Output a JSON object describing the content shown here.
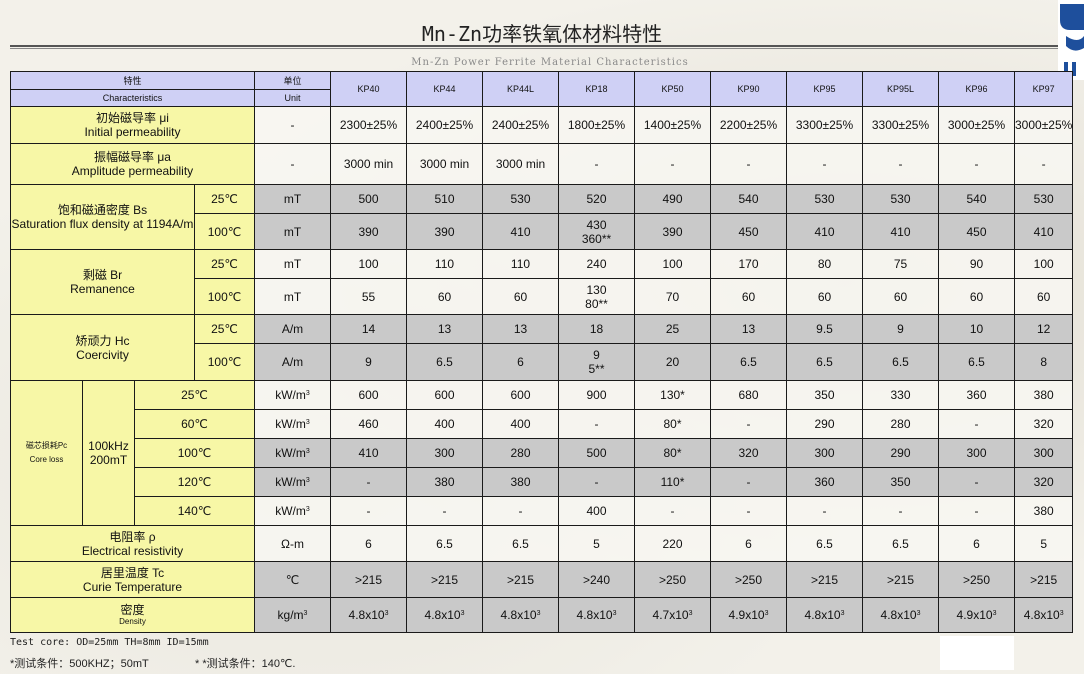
{
  "title": "Mn-Zn功率铁氧体材料特性",
  "subtitle": "Mn-Zn Power Ferrite Material Characteristics",
  "header": {
    "char_cn": "特性",
    "char_en": "Characteristics",
    "unit_cn": "单位",
    "unit_en": "Unit",
    "materials": [
      "KP40",
      "KP44",
      "KP44L",
      "KP18",
      "KP50",
      "KP90",
      "KP95",
      "KP95L",
      "KP96",
      "KP97"
    ]
  },
  "rows": {
    "initial_perm": {
      "cn": "初始磁导率 μi",
      "en": "Initial permeability",
      "unit": "-",
      "values": [
        "2300±25%",
        "2400±25%",
        "2400±25%",
        "1800±25%",
        "1400±25%",
        "2200±25%",
        "3300±25%",
        "3300±25%",
        "3000±25%",
        "3000±25%"
      ]
    },
    "amplitude_perm": {
      "cn": "振幅磁导率 μa",
      "en": "Amplitude permeability",
      "unit": "-",
      "values": [
        "3000 min",
        "3000 min",
        "3000 min",
        "-",
        "-",
        "-",
        "-",
        "-",
        "-",
        "-"
      ]
    },
    "bs": {
      "cn": "饱和磁通密度 Bs",
      "en": "Saturation flux density at 1194A/m",
      "t25": "25℃",
      "t100": "100℃",
      "unit": "mT",
      "v25": [
        "500",
        "510",
        "530",
        "520",
        "490",
        "540",
        "530",
        "530",
        "540",
        "530"
      ],
      "v100": [
        "390",
        "390",
        "410",
        "430",
        "390",
        "450",
        "410",
        "410",
        "450",
        "410"
      ],
      "v100_kp18_extra": "360**"
    },
    "br": {
      "cn": "剩磁 Br",
      "en": "Remanence",
      "t25": "25℃",
      "t100": "100℃",
      "unit": "mT",
      "v25": [
        "100",
        "110",
        "110",
        "240",
        "100",
        "170",
        "80",
        "75",
        "90",
        "100"
      ],
      "v100": [
        "55",
        "60",
        "60",
        "130",
        "70",
        "60",
        "60",
        "60",
        "60",
        "60"
      ],
      "v100_kp18_extra": "80**"
    },
    "hc": {
      "cn": "矫顽力 Hc",
      "en": "Coercivity",
      "t25": "25℃",
      "t100": "100℃",
      "unit": "A/m",
      "v25": [
        "14",
        "13",
        "13",
        "18",
        "25",
        "13",
        "9.5",
        "9",
        "10",
        "12"
      ],
      "v100": [
        "9",
        "6.5",
        "6",
        "9",
        "20",
        "6.5",
        "6.5",
        "6.5",
        "6.5",
        "8"
      ],
      "v100_kp18_extra": "5**"
    },
    "core_loss": {
      "cn": "磁芯损耗Pc",
      "en": "Core loss",
      "cond_freq": "100kHz",
      "cond_flux": "200mT",
      "unit": "kW/m",
      "unit_exp": "3",
      "temps": [
        "25℃",
        "60℃",
        "100℃",
        "120℃",
        "140℃"
      ],
      "values": [
        [
          "600",
          "600",
          "600",
          "900",
          "130*",
          "680",
          "350",
          "330",
          "360",
          "380"
        ],
        [
          "460",
          "400",
          "400",
          "-",
          "80*",
          "-",
          "290",
          "280",
          "-",
          "320"
        ],
        [
          "410",
          "300",
          "280",
          "500",
          "80*",
          "320",
          "300",
          "290",
          "300",
          "300"
        ],
        [
          "-",
          "380",
          "380",
          "-",
          "110*",
          "-",
          "360",
          "350",
          "-",
          "320"
        ],
        [
          "-",
          "-",
          "-",
          "400",
          "-",
          "-",
          "-",
          "-",
          "-",
          "380"
        ]
      ]
    },
    "resistivity": {
      "cn": "电阻率 ρ",
      "en": "Electrical resistivity",
      "unit": "Ω-m",
      "values": [
        "6",
        "6.5",
        "6.5",
        "5",
        "220",
        "6",
        "6.5",
        "6.5",
        "6",
        "5"
      ]
    },
    "curie": {
      "cn": "居里温度 Tc",
      "en": "Curie Temperature",
      "unit": "℃",
      "values": [
        ">215",
        ">215",
        ">215",
        ">240",
        ">250",
        ">250",
        ">215",
        ">215",
        ">250",
        ">215"
      ]
    },
    "density": {
      "cn": "密度",
      "en": "Density",
      "unit": "kg/m",
      "unit_exp": "3",
      "values": [
        "4.8x10",
        "4.8x10",
        "4.8x10",
        "4.8x10",
        "4.7x10",
        "4.9x10",
        "4.8x10",
        "4.8x10",
        "4.9x10",
        "4.8x10"
      ],
      "exp": "3"
    }
  },
  "footnotes": {
    "test_core": "Test core: OD=25mm  TH=8mm  ID=15mm",
    "cond1": "*测试条件：500KHZ；50mT",
    "cond2": "* *测试条件：140℃."
  },
  "colors": {
    "label_bg": "#f7f7a6",
    "header_bg": "#cfd0f5",
    "gray_bg": "#c9c9c9"
  },
  "icons": {
    "logo": "company-logo-icon"
  }
}
